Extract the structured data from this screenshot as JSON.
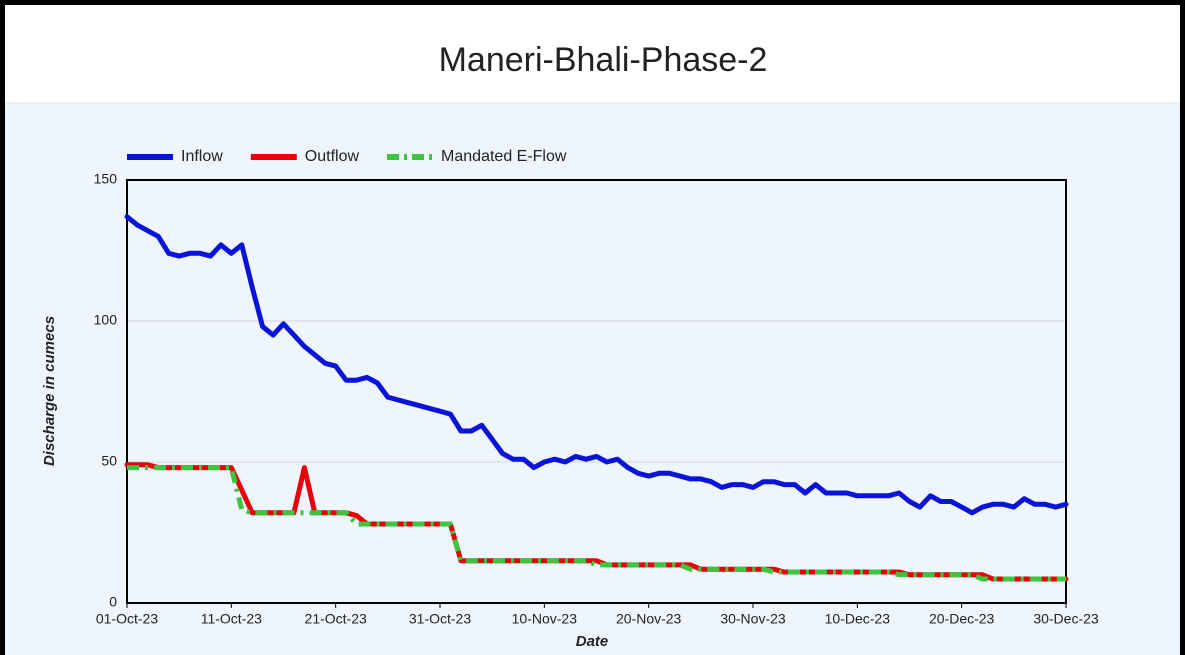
{
  "chart_data": {
    "type": "line",
    "title": "Maneri-Bhali-Phase-2",
    "xlabel": "Date",
    "ylabel": "Discharge in cumecs",
    "x": [
      "2023-10-01",
      "2023-10-02",
      "2023-10-03",
      "2023-10-04",
      "2023-10-05",
      "2023-10-06",
      "2023-10-07",
      "2023-10-08",
      "2023-10-09",
      "2023-10-10",
      "2023-10-11",
      "2023-10-12",
      "2023-10-13",
      "2023-10-14",
      "2023-10-15",
      "2023-10-16",
      "2023-10-17",
      "2023-10-18",
      "2023-10-19",
      "2023-10-20",
      "2023-10-21",
      "2023-10-22",
      "2023-10-23",
      "2023-10-24",
      "2023-10-25",
      "2023-10-26",
      "2023-10-27",
      "2023-10-28",
      "2023-10-29",
      "2023-10-30",
      "2023-10-31",
      "2023-11-01",
      "2023-11-02",
      "2023-11-03",
      "2023-11-04",
      "2023-11-05",
      "2023-11-06",
      "2023-11-07",
      "2023-11-08",
      "2023-11-09",
      "2023-11-10",
      "2023-11-11",
      "2023-11-12",
      "2023-11-13",
      "2023-11-14",
      "2023-11-15",
      "2023-11-16",
      "2023-11-17",
      "2023-11-18",
      "2023-11-19",
      "2023-11-20",
      "2023-11-21",
      "2023-11-22",
      "2023-11-23",
      "2023-11-24",
      "2023-11-25",
      "2023-11-26",
      "2023-11-27",
      "2023-11-28",
      "2023-11-29",
      "2023-11-30",
      "2023-12-01",
      "2023-12-02",
      "2023-12-03",
      "2023-12-04",
      "2023-12-05",
      "2023-12-06",
      "2023-12-07",
      "2023-12-08",
      "2023-12-09",
      "2023-12-10",
      "2023-12-11",
      "2023-12-12",
      "2023-12-13",
      "2023-12-14",
      "2023-12-15",
      "2023-12-16",
      "2023-12-17",
      "2023-12-18",
      "2023-12-19",
      "2023-12-20",
      "2023-12-21",
      "2023-12-22",
      "2023-12-23",
      "2023-12-24",
      "2023-12-25",
      "2023-12-26",
      "2023-12-27",
      "2023-12-28",
      "2023-12-29",
      "2023-12-30"
    ],
    "series": [
      {
        "name": "Inflow",
        "color": "#0a14d8",
        "dash": false,
        "values": [
          137,
          134,
          132,
          130,
          124,
          123,
          124,
          124,
          123,
          127,
          124,
          127,
          112,
          98,
          95,
          99,
          95,
          91,
          88,
          85,
          84,
          79,
          79,
          80,
          78,
          73,
          72,
          71,
          70,
          69,
          68,
          67,
          61,
          61,
          63,
          58,
          53,
          51,
          51,
          48,
          50,
          51,
          50,
          52,
          51,
          52,
          50,
          51,
          48,
          46,
          45,
          46,
          46,
          45,
          44,
          44,
          43,
          41,
          42,
          42,
          41,
          43,
          43,
          42,
          42,
          39,
          42,
          39,
          39,
          39,
          38,
          38,
          38,
          38,
          39,
          36,
          34,
          38,
          36,
          36,
          34,
          32,
          34,
          35,
          35,
          34,
          37,
          35,
          35,
          34,
          35
        ]
      },
      {
        "name": "Outflow",
        "color": "#e8000b",
        "dash": false,
        "values": [
          49,
          49,
          49,
          48,
          48,
          48,
          48,
          48,
          48,
          48,
          48,
          40,
          32,
          32,
          32,
          32,
          32,
          48,
          32,
          32,
          32,
          32,
          31,
          28,
          28,
          28,
          28,
          28,
          28,
          28,
          28,
          28,
          15,
          15,
          15,
          15,
          15,
          15,
          15,
          15,
          15,
          15,
          15,
          15,
          15,
          15,
          13.5,
          13.5,
          13.5,
          13.5,
          13.5,
          13.5,
          13.5,
          13.5,
          13.5,
          12,
          12,
          12,
          12,
          12,
          12,
          12,
          12,
          11,
          11,
          11,
          11,
          11,
          11,
          11,
          11,
          11,
          11,
          11,
          11,
          10,
          10,
          10,
          10,
          10,
          10,
          10,
          10,
          8.5,
          8.5,
          8.5,
          8.5,
          8.5,
          8.5,
          8.5,
          8.5
        ]
      },
      {
        "name": "Mandated E-Flow",
        "color": "#3ec43e",
        "dash": true,
        "values": [
          48,
          48,
          48,
          48,
          48,
          48,
          48,
          48,
          48,
          48,
          48,
          33,
          32,
          32,
          32,
          32,
          32,
          32,
          32,
          32,
          32,
          32,
          28,
          28,
          28,
          28,
          28,
          28,
          28,
          28,
          28,
          28,
          15,
          15,
          15,
          15,
          15,
          15,
          15,
          15,
          15,
          15,
          15,
          15,
          15,
          13.5,
          13.5,
          13.5,
          13.5,
          13.5,
          13.5,
          13.5,
          13.5,
          13.5,
          12,
          12,
          12,
          12,
          12,
          12,
          12,
          12,
          11,
          11,
          11,
          11,
          11,
          11,
          11,
          11,
          11,
          11,
          11,
          11,
          10,
          10,
          10,
          10,
          10,
          10,
          10,
          10,
          8.5,
          8.5,
          8.5,
          8.5,
          8.5,
          8.5,
          8.5,
          8.5,
          8.5
        ]
      }
    ],
    "xlim": [
      "2023-10-01",
      "2023-12-30"
    ],
    "xticks": [
      {
        "value": "2023-10-01",
        "label": "01-Oct-23"
      },
      {
        "value": "2023-10-11",
        "label": "11-Oct-23"
      },
      {
        "value": "2023-10-21",
        "label": "21-Oct-23"
      },
      {
        "value": "2023-10-31",
        "label": "31-Oct-23"
      },
      {
        "value": "2023-11-10",
        "label": "10-Nov-23"
      },
      {
        "value": "2023-11-20",
        "label": "20-Nov-23"
      },
      {
        "value": "2023-11-30",
        "label": "30-Nov-23"
      },
      {
        "value": "2023-12-10",
        "label": "10-Dec-23"
      },
      {
        "value": "2023-12-20",
        "label": "20-Dec-23"
      },
      {
        "value": "2023-12-30",
        "label": "30-Dec-23"
      }
    ],
    "ylim": [
      0,
      150
    ],
    "yticks": [
      0,
      50,
      100,
      150
    ],
    "grid": true,
    "legend": "top-left"
  }
}
